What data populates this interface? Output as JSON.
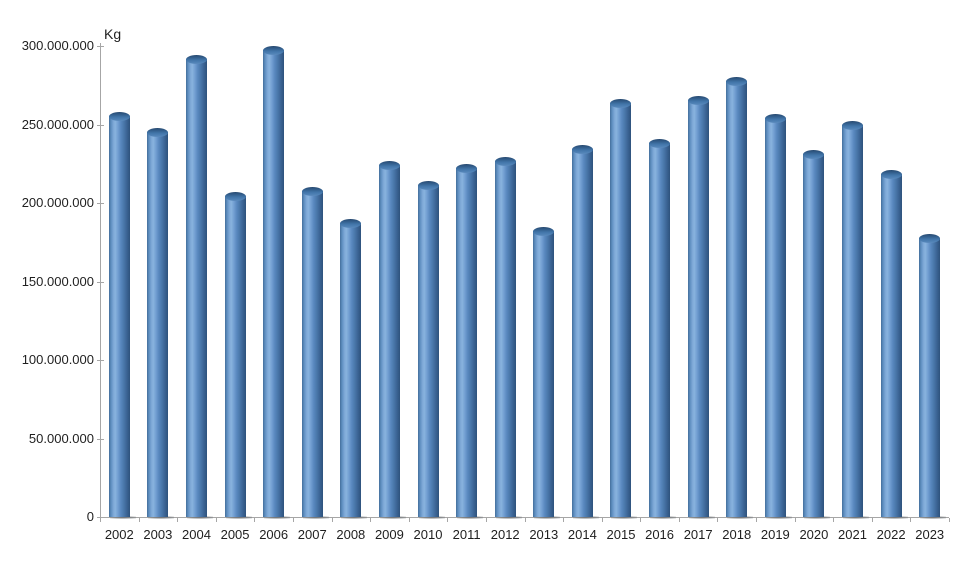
{
  "chart_data": {
    "type": "bar",
    "title": "",
    "xlabel": "",
    "ylabel": "Kg",
    "categories": [
      "2002",
      "2003",
      "2004",
      "2005",
      "2006",
      "2007",
      "2008",
      "2009",
      "2010",
      "2011",
      "2012",
      "2013",
      "2014",
      "2015",
      "2016",
      "2017",
      "2018",
      "2019",
      "2020",
      "2021",
      "2022",
      "2023"
    ],
    "values": [
      258000000,
      248000000,
      294000000,
      207000000,
      300000000,
      210000000,
      190000000,
      227000000,
      214000000,
      225000000,
      229000000,
      185000000,
      237000000,
      266000000,
      241000000,
      268000000,
      280000000,
      257000000,
      234000000,
      252000000,
      221000000,
      180000000
    ],
    "ylim": [
      0,
      300000000
    ],
    "y_tick_step": 50000000,
    "y_tick_labels": [
      "0",
      "50.000.000",
      "100.000.000",
      "150.000.000",
      "200.000.000",
      "250.000.000",
      "300.000.000"
    ],
    "grid": false,
    "legend": false,
    "bar_style": "3d-cylinder",
    "bar_color": "#4F81BD"
  },
  "colors": {
    "background": "#FFFFFF",
    "axis": "#A6A6A6",
    "text": "#1F1F1F",
    "bar_main": "#4F81BD",
    "bar_highlight": "#88B3DE",
    "bar_edge_dark": "#2E527C"
  }
}
